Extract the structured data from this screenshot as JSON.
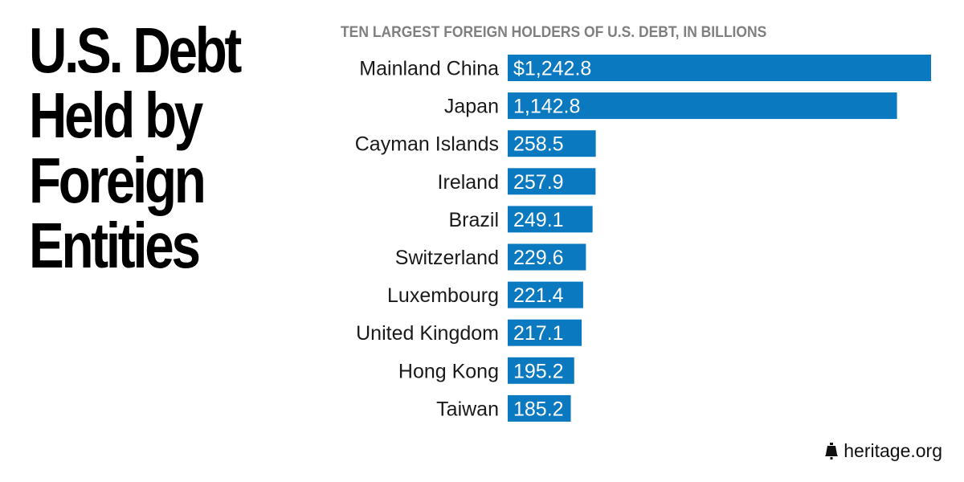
{
  "headline": "U.S. Debt\nHeld by\nForeign\nEntities",
  "colors": {
    "bar": "#0a79bf",
    "bar_label": "#ffffff",
    "category_label": "#1a1a1a",
    "subtitle": "#7f7f7f"
  },
  "chart_data": {
    "type": "bar",
    "orientation": "horizontal",
    "title": "TEN LARGEST FOREIGN HOLDERS OF U.S. DEBT, IN BILLIONS",
    "categories": [
      "Mainland China",
      "Japan",
      "Cayman Islands",
      "Ireland",
      "Brazil",
      "Switzerland",
      "Luxembourg",
      "United Kingdom",
      "Hong Kong",
      "Taiwan"
    ],
    "values": [
      1242.8,
      1142.8,
      258.5,
      257.9,
      249.1,
      229.6,
      221.4,
      217.1,
      195.2,
      185.2
    ],
    "value_labels": [
      "$1,242.8",
      "1,142.8",
      "258.5",
      "257.9",
      "249.1",
      "229.6",
      "221.4",
      "217.1",
      "195.2",
      "185.2"
    ],
    "xlim": [
      0,
      1242.8
    ],
    "grid": false,
    "legend": "none"
  },
  "credit": {
    "icon": "liberty-bell-icon",
    "text": "heritage.org"
  }
}
